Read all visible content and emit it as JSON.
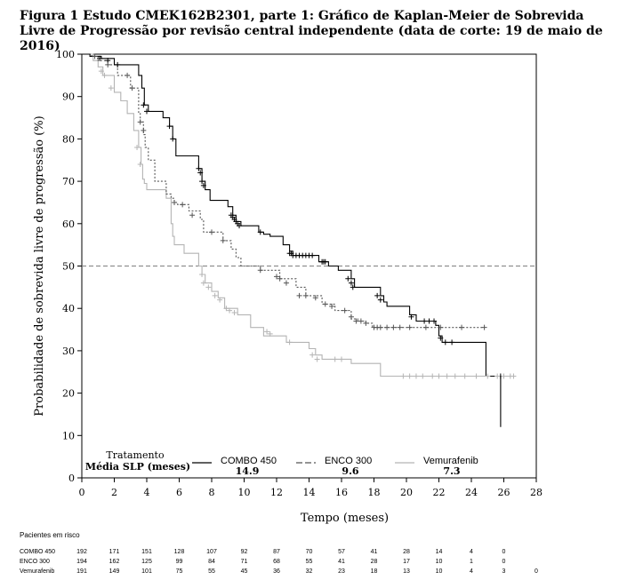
{
  "title": "Figura 1 Estudo CMEK162B2301, parte 1: Gráfico de Kaplan-Meier de Sobrevida Livre de Progressão por revisão central independente (data de corte: 19 de maio de 2016)",
  "chart_data": {
    "type": "line",
    "step": true,
    "xlabel": "Tempo (meses)",
    "ylabel": "Probabilidade de sobrevida livre de progressão (%)",
    "xlim": [
      0,
      28
    ],
    "ylim": [
      0,
      100
    ],
    "xticks": [
      0,
      2,
      4,
      6,
      8,
      10,
      12,
      14,
      16,
      18,
      20,
      22,
      24,
      26,
      28
    ],
    "yticks": [
      0,
      10,
      20,
      30,
      40,
      50,
      60,
      70,
      80,
      90,
      100
    ],
    "reference_line_y": 50,
    "grid": false,
    "legend": {
      "header": "Tratamento",
      "median_header": "Média SLP (meses)",
      "placement": "bottom-left"
    },
    "colors": {
      "COMBO 450": "#000000",
      "ENCO 300": "#555555",
      "Vemurafenib": "#b4b4b4",
      "reference": "#808080"
    },
    "series": [
      {
        "name": "COMBO 450",
        "median": "14.9",
        "line_style": "solid",
        "x": [
          0,
          0.5,
          1.2,
          2.0,
          3.5,
          3.7,
          3.85,
          4.1,
          5.0,
          5.4,
          5.6,
          5.8,
          7.2,
          7.4,
          7.6,
          7.9,
          9.0,
          9.3,
          9.5,
          9.8,
          10.9,
          11.2,
          11.6,
          12.4,
          12.8,
          13.0,
          14.6,
          15.2,
          15.8,
          16.6,
          16.8,
          18.4,
          18.6,
          18.8,
          20.2,
          20.6,
          21.8,
          22.0,
          22.2,
          24.9,
          25.8
        ],
        "y": [
          100,
          99.5,
          99,
          97.5,
          95,
          92,
          88,
          86.5,
          85,
          83,
          80,
          76,
          73,
          70,
          68,
          65.5,
          64,
          62,
          60.5,
          59.5,
          58,
          57.5,
          57,
          55,
          53.5,
          52.5,
          51,
          50,
          49,
          47,
          45,
          43,
          41.5,
          40.5,
          38.5,
          37,
          36,
          33.5,
          32,
          24,
          12
        ]
      },
      {
        "name": "ENCO 300",
        "median": "9.6",
        "line_style": "dashed",
        "x": [
          0,
          0.6,
          1.0,
          1.6,
          2.2,
          3.0,
          3.5,
          3.6,
          3.8,
          3.9,
          4.1,
          4.5,
          5.2,
          5.5,
          5.7,
          5.9,
          6.6,
          7.3,
          7.5,
          8.7,
          9.2,
          9.5,
          9.8,
          11.0,
          12.2,
          13.2,
          13.8,
          14.8,
          15.6,
          16.6,
          17.0,
          17.5,
          17.9,
          24.8
        ],
        "y": [
          100,
          99.5,
          98.5,
          97.5,
          95,
          92,
          86,
          84,
          81,
          78,
          75,
          70,
          67,
          66,
          65,
          64.5,
          63,
          61,
          58,
          56,
          54,
          52,
          50,
          49,
          47,
          45,
          43,
          41,
          39.5,
          37.5,
          37,
          36.5,
          35.5,
          35.5
        ]
      },
      {
        "name": "Vemurafenib",
        "median": "7.3",
        "line_style": "solid",
        "x": [
          0,
          0.7,
          1.0,
          1.3,
          2.0,
          2.4,
          2.8,
          3.2,
          3.5,
          3.65,
          3.75,
          3.85,
          4.0,
          5.2,
          5.5,
          5.6,
          5.7,
          6.3,
          7.2,
          7.4,
          7.6,
          8.0,
          8.4,
          8.8,
          9.6,
          10.4,
          11.2,
          12.6,
          14.0,
          14.4,
          14.8,
          16.6,
          18.4,
          26.7
        ],
        "y": [
          100,
          98.5,
          97,
          95,
          91,
          89,
          86,
          82,
          78,
          74,
          70.5,
          69.5,
          68,
          66,
          60,
          57,
          55,
          53,
          50,
          48,
          46,
          44,
          42.5,
          40,
          38.5,
          35.5,
          33.5,
          32,
          30.5,
          29,
          28,
          27,
          24,
          24
        ]
      }
    ],
    "censor_marks": [
      {
        "series": "COMBO 450",
        "x": [
          1.1,
          1.6,
          2.2,
          3.8,
          4.0,
          5.4,
          5.6,
          7.2,
          7.3,
          7.4,
          7.5,
          9.2,
          9.3,
          9.4,
          9.5,
          9.6,
          9.7,
          11.0,
          12.8,
          12.9,
          13.0,
          13.2,
          13.4,
          13.6,
          13.8,
          14.0,
          14.2,
          14.8,
          14.9,
          15.0,
          16.4,
          16.6,
          16.7,
          18.2,
          18.4,
          20.3,
          21.1,
          21.4,
          21.7,
          22.1,
          22.4,
          22.8,
          25.8
        ],
        "y": [
          99,
          98.5,
          97.5,
          88,
          86.5,
          83,
          80,
          73,
          72,
          70,
          69,
          62,
          61.5,
          61,
          60.5,
          60,
          59.5,
          58,
          53,
          53,
          52.5,
          52.5,
          52.5,
          52.5,
          52.5,
          52.5,
          52.5,
          51,
          51,
          51,
          47,
          46,
          45,
          43,
          42,
          38,
          37,
          37,
          37,
          33,
          32,
          32,
          24
        ]
      },
      {
        "series": "ENCO 300",
        "x": [
          0.8,
          1.6,
          2.8,
          3.1,
          3.6,
          3.8,
          5.7,
          6.2,
          6.8,
          8.0,
          8.7,
          11.0,
          12.0,
          12.2,
          12.6,
          13.4,
          13.8,
          14.4,
          15.0,
          15.4,
          16.2,
          16.6,
          16.9,
          17.2,
          17.5,
          18.0,
          18.2,
          18.4,
          18.8,
          19.2,
          19.6,
          20.2,
          21.2,
          22.1,
          23.4,
          24.8
        ],
        "y": [
          99.5,
          97.5,
          95,
          92,
          84,
          82,
          65,
          64.5,
          62,
          58,
          56,
          49,
          47.5,
          47,
          46,
          43,
          43,
          42.5,
          41,
          40.5,
          39.5,
          38,
          37,
          37,
          36.5,
          35.5,
          35.5,
          35.5,
          35.5,
          35.5,
          35.5,
          35.5,
          35.5,
          35.5,
          35.5,
          35.5
        ]
      },
      {
        "series": "Vemurafenib",
        "x": [
          1.2,
          1.4,
          1.8,
          3.4,
          3.6,
          7.4,
          7.5,
          7.8,
          8.2,
          8.5,
          8.9,
          9.1,
          9.4,
          11.4,
          11.6,
          12.8,
          14.2,
          14.5,
          15.6,
          16.0,
          19.8,
          20.2,
          20.6,
          21.0,
          21.6,
          22.0,
          22.5,
          23.0,
          23.6,
          24.3,
          25.0,
          25.6,
          26.0,
          26.4,
          26.6
        ],
        "y": [
          96,
          95,
          92,
          78,
          74,
          48,
          46,
          45,
          43,
          42,
          40,
          39.5,
          39,
          34.5,
          34,
          32,
          29,
          28,
          28,
          28,
          24,
          24,
          24,
          24,
          24,
          24,
          24,
          24,
          24,
          24,
          24,
          24,
          24,
          24,
          24
        ]
      }
    ],
    "risk_table": {
      "title": "Pacientes em risco",
      "times": [
        0,
        2,
        4,
        6,
        8,
        10,
        12,
        14,
        16,
        18,
        20,
        22,
        24,
        26,
        28
      ],
      "rows": [
        {
          "label": "COMBO 450",
          "counts": [
            "192",
            "171",
            "151",
            "128",
            "107",
            "92",
            "87",
            "70",
            "57",
            "41",
            "28",
            "14",
            "4",
            "0",
            ""
          ]
        },
        {
          "label": "ENCO 300",
          "counts": [
            "194",
            "162",
            "125",
            "99",
            "84",
            "71",
            "68",
            "55",
            "41",
            "28",
            "17",
            "10",
            "1",
            "0",
            ""
          ]
        },
        {
          "label": "Vemurafenib",
          "counts": [
            "191",
            "149",
            "101",
            "75",
            "55",
            "45",
            "36",
            "32",
            "23",
            "18",
            "13",
            "10",
            "4",
            "3",
            "0"
          ]
        }
      ]
    }
  }
}
